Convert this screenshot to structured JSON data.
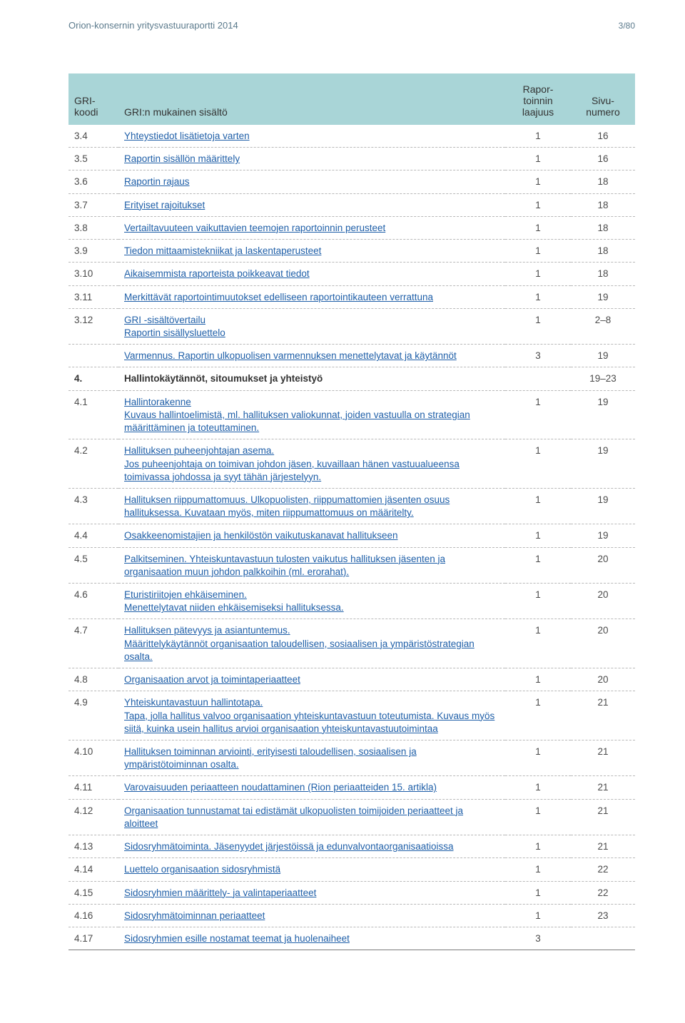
{
  "header": {
    "doc_title": "Orion-konsernin yritysvastuuraportti 2014",
    "page_indicator": "3/80"
  },
  "table": {
    "columns": {
      "code": "GRI-koodi",
      "desc": "GRI:n mukainen sisältö",
      "scope": "Rapor-toinnin laajuus",
      "page": "Sivu-numero"
    },
    "rows": [
      {
        "code": "3.4",
        "lines": [
          "Yhteystiedot lisätietoja varten"
        ],
        "scope": "1",
        "page": "16"
      },
      {
        "code": "3.5",
        "lines": [
          "Raportin sisällön määrittely"
        ],
        "scope": "1",
        "page": "16"
      },
      {
        "code": "3.6",
        "lines": [
          "Raportin rajaus"
        ],
        "scope": "1",
        "page": "18"
      },
      {
        "code": "3.7",
        "lines": [
          "Erityiset rajoitukset"
        ],
        "scope": "1",
        "page": "18"
      },
      {
        "code": "3.8",
        "lines": [
          "Vertailtavuuteen vaikuttavien teemojen raportoinnin perusteet"
        ],
        "scope": "1",
        "page": "18"
      },
      {
        "code": "3.9",
        "lines": [
          "Tiedon mittaamistekniikat ja laskentaperusteet"
        ],
        "scope": "1",
        "page": "18"
      },
      {
        "code": "3.10",
        "lines": [
          "Aikaisemmista raporteista poikkeavat tiedot"
        ],
        "scope": "1",
        "page": "18"
      },
      {
        "code": "3.11",
        "lines": [
          "Merkittävät raportointimuutokset edelliseen raportointikauteen verrattuna"
        ],
        "scope": "1",
        "page": "19"
      },
      {
        "code": "3.12",
        "lines": [
          "GRI -sisältövertailu",
          "Raportin sisällysluettelo"
        ],
        "scope": "1",
        "page": "2–8"
      },
      {
        "code": "",
        "lines": [
          "Varmennus. Raportin ulkopuolisen varmennuksen menettelytavat ja käytännöt"
        ],
        "scope": "3",
        "page": "19"
      },
      {
        "code": "4.",
        "section": true,
        "lines": [
          "Hallintokäytännöt, sitoumukset ja yhteistyö"
        ],
        "scope": "",
        "page": "19–23"
      },
      {
        "code": "4.1",
        "lines": [
          "Hallintorakenne",
          "Kuvaus hallintoelimistä, ml. hallituksen valiokunnat, joiden vastuulla on strategian määrittäminen ja toteuttaminen."
        ],
        "scope": "1",
        "page": "19"
      },
      {
        "code": "4.2",
        "lines": [
          "Hallituksen puheenjohtajan asema.",
          "Jos puheenjohtaja on toimivan johdon jäsen, kuvaillaan hänen vastuualueensa toimivassa johdossa ja syyt tähän järjestelyyn."
        ],
        "scope": "1",
        "page": "19"
      },
      {
        "code": "4.3",
        "lines": [
          "Hallituksen riippumattomuus. Ulkopuolisten, riippumattomien jäsenten osuus hallituksessa. Kuvataan myös, miten riippumattomuus on määritelty."
        ],
        "scope": "1",
        "page": "19"
      },
      {
        "code": "4.4",
        "lines": [
          "Osakkeenomistajien ja henkilöstön vaikutuskanavat hallitukseen"
        ],
        "scope": "1",
        "page": "19"
      },
      {
        "code": "4.5",
        "lines": [
          "Palkitseminen. Yhteiskuntavastuun tulosten vaikutus hallituksen jäsenten ja organisaation muun johdon palkkoihin (ml. erorahat)."
        ],
        "scope": "1",
        "page": "20"
      },
      {
        "code": "4.6",
        "lines": [
          "Eturistiriitojen ehkäiseminen.",
          "Menettelytavat niiden ehkäisemiseksi hallituksessa."
        ],
        "scope": "1",
        "page": "20"
      },
      {
        "code": "4.7",
        "lines": [
          "Hallituksen pätevyys ja asiantuntemus.",
          "Määrittelykäytännöt organisaation taloudellisen, sosiaalisen ja ympäristöstrategian osalta."
        ],
        "scope": "1",
        "page": "20"
      },
      {
        "code": "4.8",
        "lines": [
          "Organisaation arvot ja toimintaperiaatteet"
        ],
        "scope": "1",
        "page": "20"
      },
      {
        "code": "4.9",
        "lines": [
          "Yhteiskuntavastuun hallintotapa.",
          "Tapa, jolla hallitus valvoo organisaation yhteiskuntavastuun toteutumista. Kuvaus myös siitä, kuinka usein hallitus arvioi organisaation yhteiskuntavastuutoimintaa"
        ],
        "scope": "1",
        "page": "21"
      },
      {
        "code": "4.10",
        "lines": [
          "Hallituksen toiminnan arviointi, erityisesti taloudellisen, sosiaalisen ja ympäristötoiminnan osalta."
        ],
        "scope": "1",
        "page": "21"
      },
      {
        "code": "4.11",
        "lines": [
          "Varovaisuuden periaatteen noudattaminen (Rion periaatteiden 15. artikla)"
        ],
        "scope": "1",
        "page": "21"
      },
      {
        "code": "4.12",
        "lines": [
          "Organisaation tunnustamat tai edistämät ulkopuolisten toimijoiden periaatteet ja aloitteet"
        ],
        "scope": "1",
        "page": "21"
      },
      {
        "code": "4.13",
        "lines": [
          "Sidosryhmätoiminta. Jäsenyydet järjestöissä ja edunvalvontaorganisaatioissa"
        ],
        "scope": "1",
        "page": "21"
      },
      {
        "code": "4.14",
        "lines": [
          "Luettelo organisaation sidosryhmistä"
        ],
        "scope": "1",
        "page": "22"
      },
      {
        "code": "4.15",
        "lines": [
          "Sidosryhmien määrittely- ja valintaperiaatteet"
        ],
        "scope": "1",
        "page": "22"
      },
      {
        "code": "4.16",
        "lines": [
          "Sidosryhmätoiminnan periaatteet"
        ],
        "scope": "1",
        "page": "23"
      },
      {
        "code": "4.17",
        "lines": [
          "Sidosryhmien esille nostamat teemat ja huolenaiheet"
        ],
        "scope": "3",
        "page": "",
        "last": true
      }
    ]
  },
  "style": {
    "link_color": "#1f5fa8",
    "header_bg": "#a9d5d7",
    "running_head_color": "#5b7a8c"
  }
}
